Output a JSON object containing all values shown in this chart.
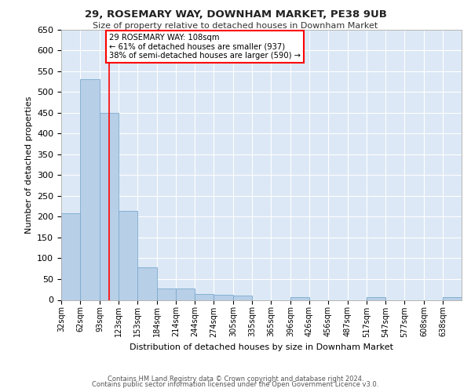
{
  "title1": "29, ROSEMARY WAY, DOWNHAM MARKET, PE38 9UB",
  "title2": "Size of property relative to detached houses in Downham Market",
  "xlabel": "Distribution of detached houses by size in Downham Market",
  "ylabel": "Number of detached properties",
  "bar_color": "#b8cfe8",
  "bar_edge_color": "#7aaace",
  "bg_color": "#dce8f5",
  "fig_bg": "#ffffff",
  "annotation_text": "29 ROSEMARY WAY: 108sqm\n← 61% of detached houses are smaller (937)\n38% of semi-detached houses are larger (590) →",
  "vline_x": 108,
  "vline_color": "red",
  "bin_labels": [
    "32sqm",
    "62sqm",
    "93sqm",
    "123sqm",
    "153sqm",
    "184sqm",
    "214sqm",
    "244sqm",
    "274sqm",
    "305sqm",
    "335sqm",
    "365sqm",
    "396sqm",
    "426sqm",
    "456sqm",
    "487sqm",
    "517sqm",
    "547sqm",
    "577sqm",
    "608sqm",
    "638sqm"
  ],
  "bin_edges": [
    32,
    62,
    93,
    123,
    153,
    184,
    214,
    244,
    274,
    305,
    335,
    365,
    396,
    426,
    456,
    487,
    517,
    547,
    577,
    608,
    638,
    668
  ],
  "counts": [
    208,
    530,
    450,
    213,
    78,
    27,
    27,
    15,
    13,
    10,
    0,
    0,
    7,
    0,
    0,
    0,
    7,
    0,
    0,
    0,
    7
  ],
  "ylim": [
    0,
    650
  ],
  "yticks": [
    0,
    50,
    100,
    150,
    200,
    250,
    300,
    350,
    400,
    450,
    500,
    550,
    600,
    650
  ],
  "footer1": "Contains HM Land Registry data © Crown copyright and database right 2024.",
  "footer2": "Contains public sector information licensed under the Open Government Licence v3.0."
}
